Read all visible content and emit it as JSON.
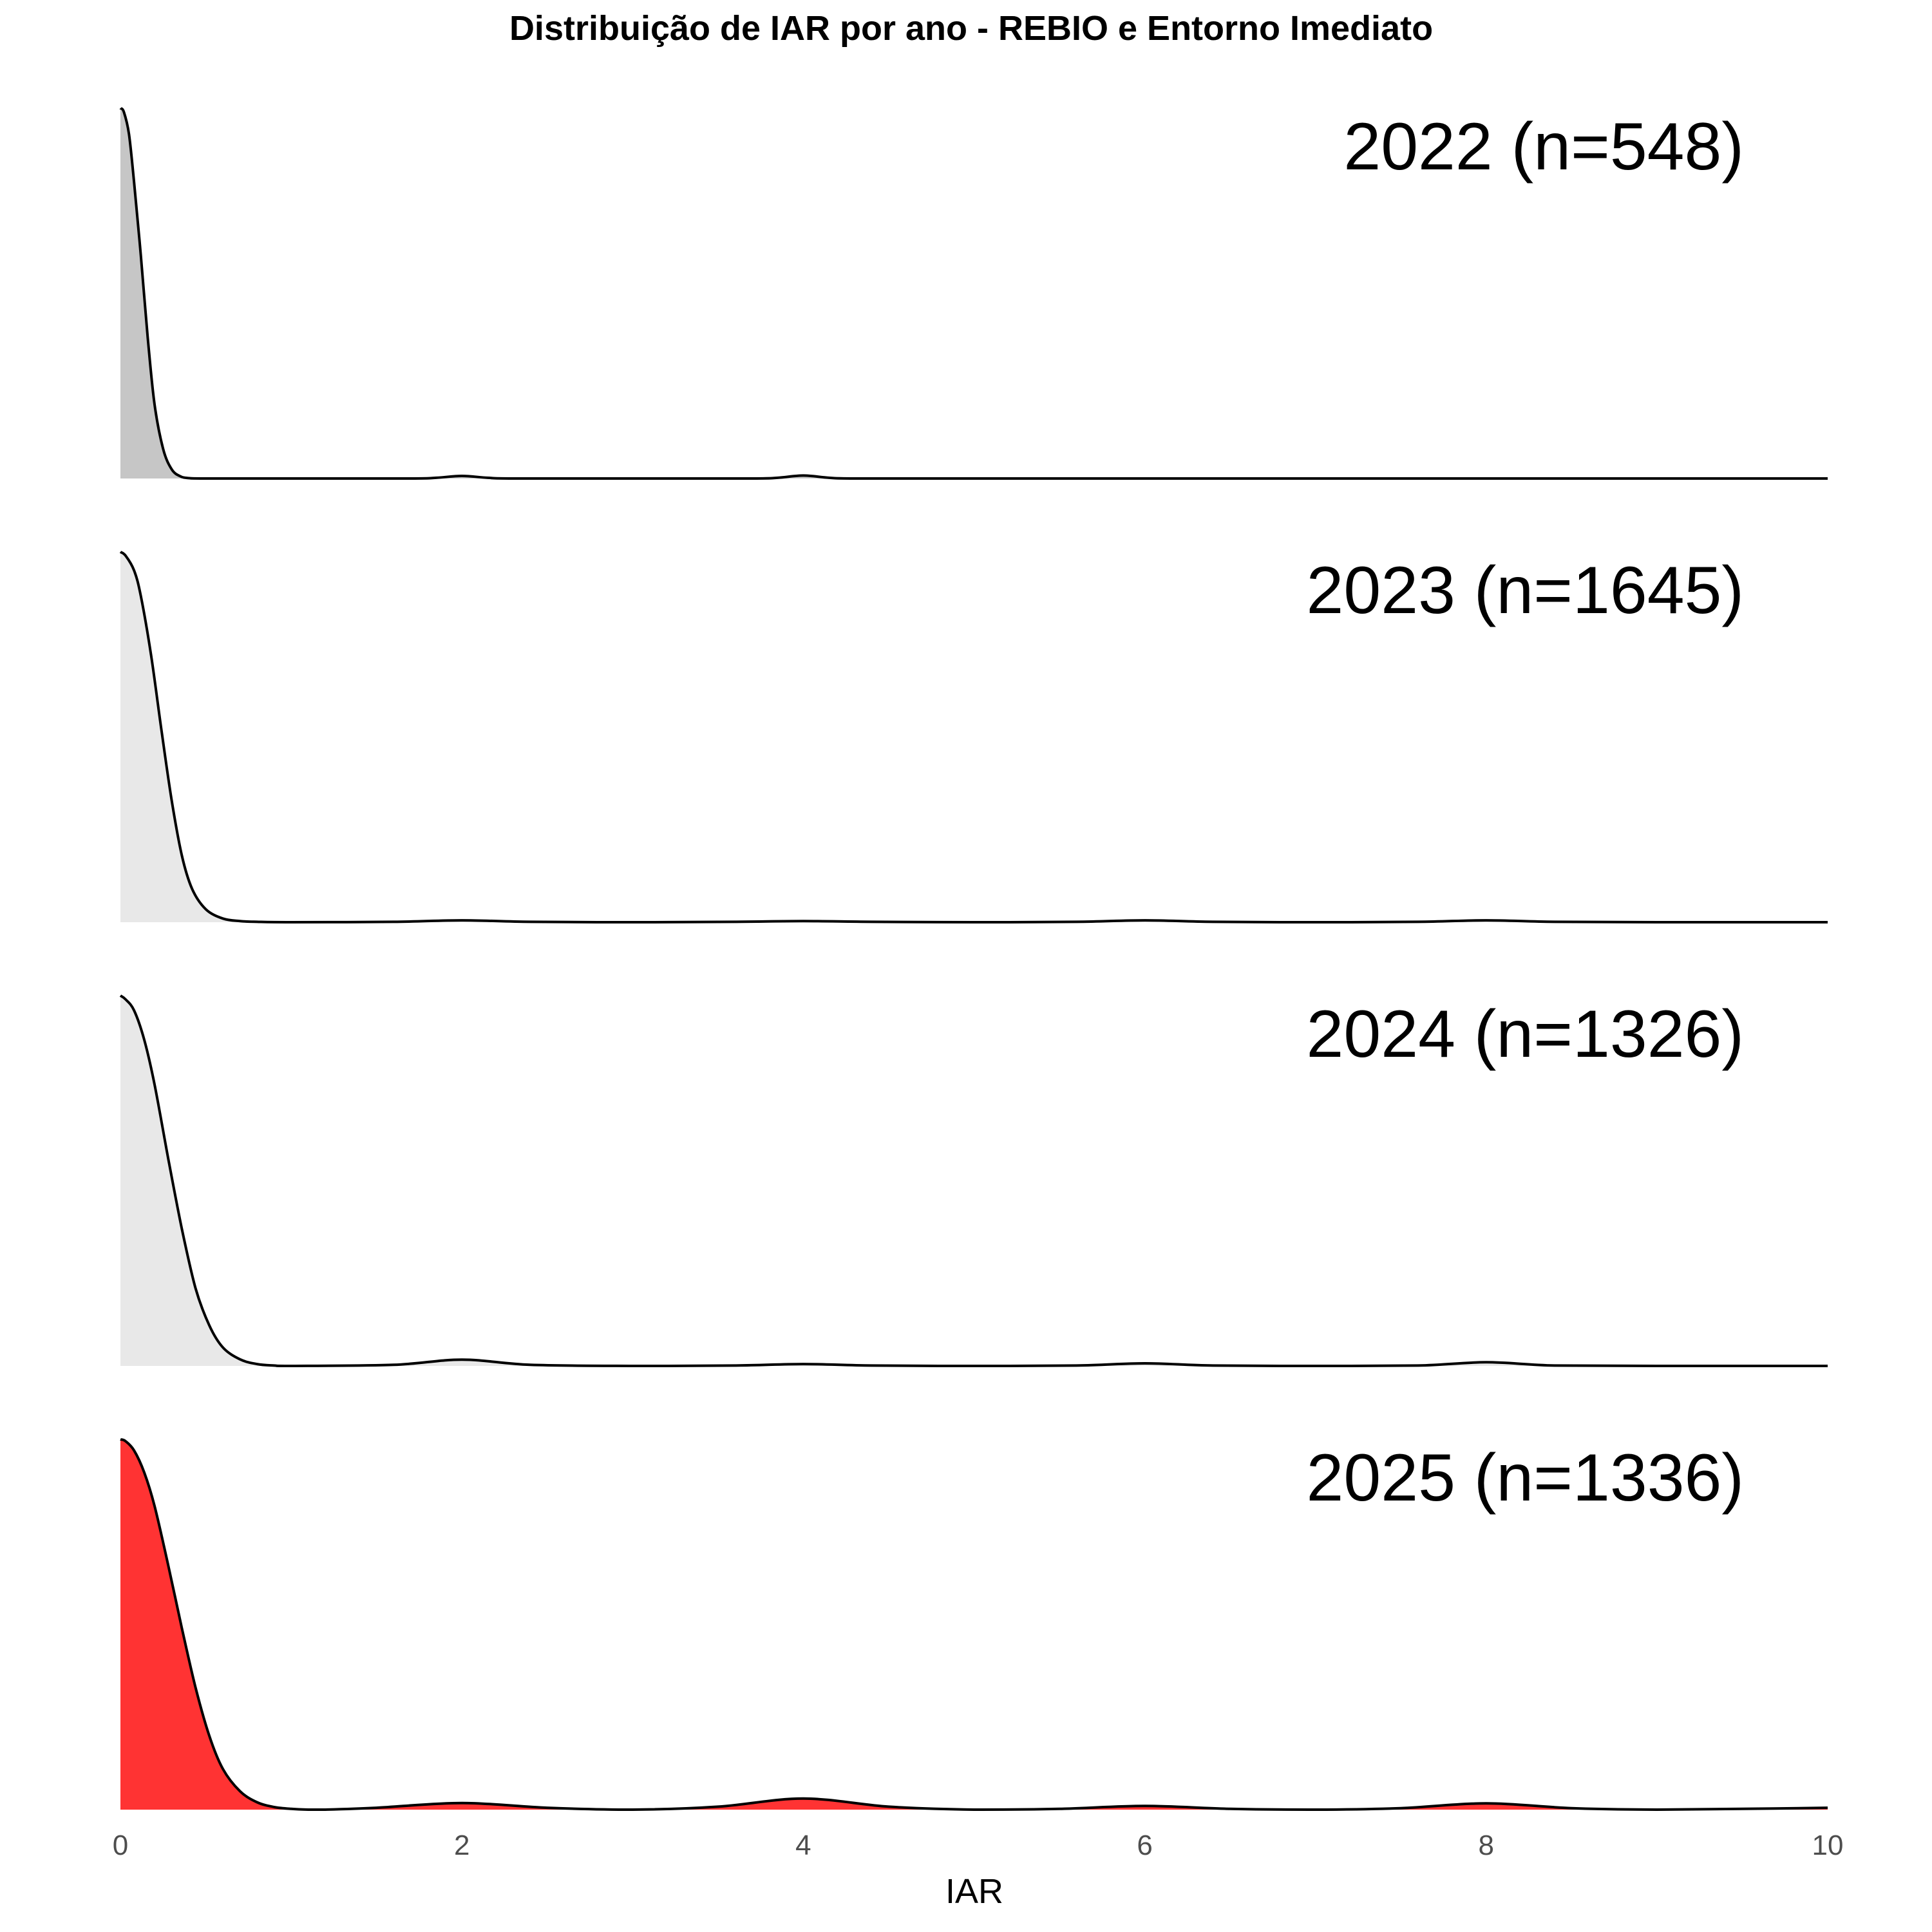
{
  "chart_data": {
    "type": "area",
    "subtype": "ridgeline-density",
    "title": "Distribuição de IAR por ano - REBIO e Entorno Imediato",
    "xlabel": "IAR",
    "ylabel": "",
    "xlim": [
      0,
      10
    ],
    "x_ticks": [
      0,
      2,
      4,
      6,
      8,
      10
    ],
    "x_tick_labels": [
      "0",
      "2",
      "4",
      "6",
      "8",
      "10"
    ],
    "grid": false,
    "legend": "none",
    "series": [
      {
        "label": "2022 (n=548)",
        "fill_color": "#c6c6c6",
        "x": [
          0,
          0.02,
          0.05,
          0.08,
          0.12,
          0.16,
          0.2,
          0.25,
          0.3,
          0.35,
          0.4,
          0.5,
          1.0,
          1.7,
          1.85,
          2.0,
          2.15,
          2.3,
          3.0,
          3.7,
          3.85,
          4.0,
          4.15,
          4.3,
          5.0,
          6.0,
          7.0,
          8.0,
          9.0,
          10.0
        ],
        "density": [
          1.0,
          0.99,
          0.93,
          0.8,
          0.6,
          0.38,
          0.2,
          0.08,
          0.025,
          0.006,
          0.001,
          0,
          0,
          0,
          0.002,
          0.007,
          0.002,
          0,
          0,
          0,
          0.002,
          0.008,
          0.002,
          0,
          0,
          0,
          0,
          0,
          0,
          0
        ]
      },
      {
        "label": "2023 (n=1645)",
        "fill_color": "#e8e8e8",
        "x": [
          0,
          0.03,
          0.08,
          0.12,
          0.18,
          0.24,
          0.3,
          0.36,
          0.42,
          0.5,
          0.6,
          0.7,
          0.8,
          1.0,
          1.6,
          2.0,
          2.4,
          3.0,
          3.6,
          4.0,
          4.4,
          5.0,
          5.6,
          6.0,
          6.4,
          7.0,
          7.6,
          8.0,
          8.4,
          9.0,
          10.0
        ],
        "density": [
          1.0,
          0.99,
          0.95,
          0.88,
          0.72,
          0.52,
          0.33,
          0.18,
          0.09,
          0.035,
          0.01,
          0.003,
          0.001,
          0,
          0.001,
          0.005,
          0.001,
          0,
          0.001,
          0.003,
          0.001,
          0,
          0.001,
          0.005,
          0.001,
          0,
          0.001,
          0.005,
          0.001,
          0,
          0
        ]
      },
      {
        "label": "2024 (n=1326)",
        "fill_color": "#e8e8e8",
        "x": [
          0,
          0.03,
          0.08,
          0.14,
          0.2,
          0.28,
          0.36,
          0.44,
          0.52,
          0.6,
          0.7,
          0.8,
          0.9,
          1.0,
          1.6,
          2.0,
          2.4,
          3.0,
          3.6,
          4.0,
          4.4,
          5.0,
          5.6,
          6.0,
          6.4,
          7.0,
          7.6,
          8.0,
          8.4,
          9.0,
          10.0
        ],
        "density": [
          1.0,
          0.99,
          0.96,
          0.88,
          0.76,
          0.56,
          0.37,
          0.21,
          0.11,
          0.05,
          0.018,
          0.005,
          0.001,
          0,
          0.003,
          0.017,
          0.003,
          0,
          0.001,
          0.005,
          0.001,
          0,
          0.001,
          0.007,
          0.001,
          0,
          0.001,
          0.01,
          0.001,
          0,
          0
        ]
      },
      {
        "label": "2025 (n=1336)",
        "fill_color": "#ff3333",
        "x": [
          0,
          0.03,
          0.08,
          0.14,
          0.2,
          0.28,
          0.36,
          0.44,
          0.52,
          0.6,
          0.7,
          0.8,
          0.9,
          1.0,
          1.1,
          1.2,
          1.5,
          2.0,
          2.5,
          3.0,
          3.5,
          4.0,
          4.5,
          5.0,
          5.5,
          6.0,
          6.5,
          7.0,
          7.5,
          8.0,
          8.5,
          9.0,
          9.5,
          10.0
        ],
        "density": [
          1.0,
          0.995,
          0.97,
          0.91,
          0.82,
          0.66,
          0.49,
          0.33,
          0.2,
          0.11,
          0.05,
          0.02,
          0.007,
          0.002,
          0,
          0,
          0.005,
          0.018,
          0.005,
          0,
          0.008,
          0.03,
          0.008,
          0,
          0.002,
          0.01,
          0.002,
          0,
          0.004,
          0.017,
          0.004,
          0,
          0.002,
          0.005
        ]
      }
    ]
  }
}
